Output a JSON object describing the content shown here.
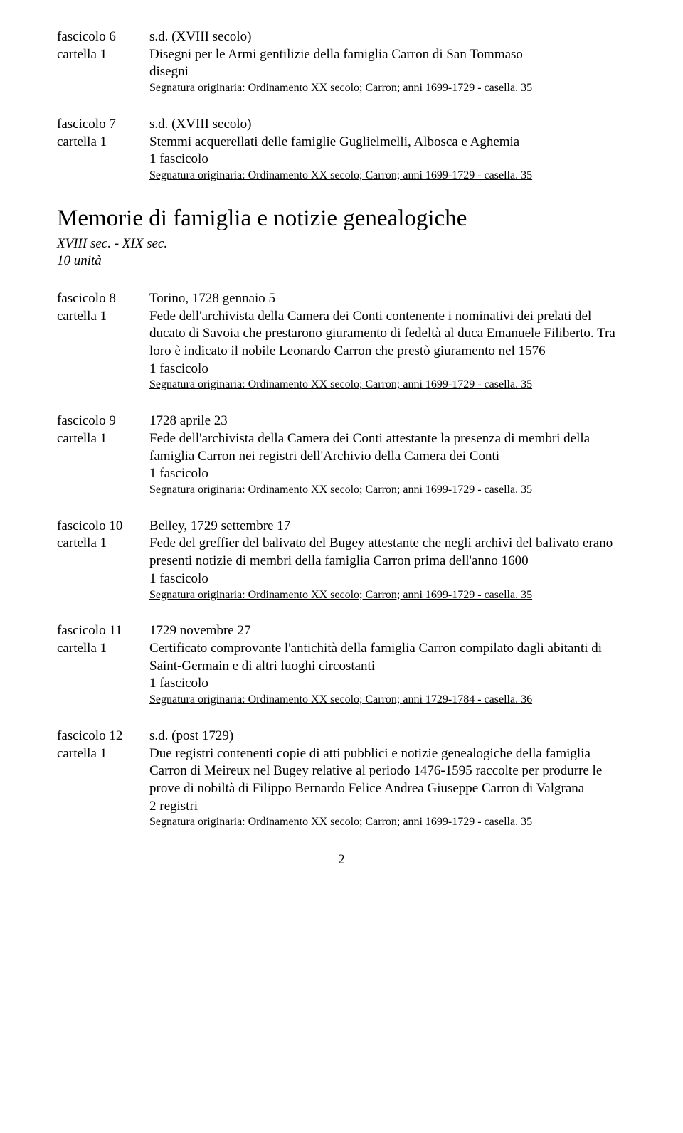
{
  "entries_top": [
    {
      "fascicolo": "fascicolo 6",
      "cartella": "cartella 1",
      "date": "s.d. (XVIII secolo)",
      "title": "Disegni per le Armi gentilizie della famiglia Carron di San Tommaso",
      "count": "disegni",
      "signature": "Segnatura originaria: Ordinamento XX secolo; Carron; anni 1699-1729 - casella. 35"
    },
    {
      "fascicolo": "fascicolo 7",
      "cartella": "cartella 1",
      "date": "s.d. (XVIII secolo)",
      "title": "Stemmi acquerellati delle famiglie Guglielmelli, Albosca e Aghemia",
      "count": "1 fascicolo",
      "signature": "Segnatura originaria: Ordinamento XX secolo; Carron; anni 1699-1729 - casella. 35"
    }
  ],
  "section": {
    "heading": "Memorie di famiglia e notizie genealogiche",
    "subheading_line1": "XVIII sec. - XIX sec.",
    "subheading_line2": "10 unità"
  },
  "entries_bottom": [
    {
      "fascicolo": "fascicolo 8",
      "cartella": "cartella 1",
      "date": "Torino, 1728 gennaio 5",
      "title": "Fede dell'archivista della Camera dei Conti contenente i nominativi dei prelati del ducato di Savoia che prestarono giuramento di fedeltà al duca Emanuele Filiberto. Tra loro è indicato il nobile Leonardo Carron che prestò giuramento nel 1576",
      "count": "1 fascicolo",
      "signature": "Segnatura originaria: Ordinamento XX secolo; Carron; anni 1699-1729 - casella. 35"
    },
    {
      "fascicolo": "fascicolo 9",
      "cartella": "cartella 1",
      "date": "1728 aprile 23",
      "title": "Fede dell'archivista della Camera dei Conti attestante la presenza di membri della famiglia Carron nei registri dell'Archivio della Camera dei Conti",
      "count": "1 fascicolo",
      "signature": "Segnatura originaria: Ordinamento XX secolo; Carron; anni 1699-1729 - casella. 35"
    },
    {
      "fascicolo": "fascicolo 10",
      "cartella": "cartella 1",
      "date": "Belley, 1729 settembre 17",
      "title": "Fede del greffier del balivato del Bugey attestante che negli archivi del balivato erano presenti notizie di membri della famiglia Carron prima dell'anno 1600",
      "count": "1 fascicolo",
      "signature": "Segnatura originaria: Ordinamento XX secolo; Carron; anni 1699-1729 - casella. 35"
    },
    {
      "fascicolo": "fascicolo 11",
      "cartella": "cartella 1",
      "date": "1729 novembre 27",
      "title": "Certificato comprovante l'antichità della famiglia Carron compilato dagli abitanti di Saint-Germain e di altri luoghi circostanti",
      "count": "1 fascicolo",
      "signature": "Segnatura originaria: Ordinamento XX secolo; Carron; anni 1729-1784 - casella. 36"
    },
    {
      "fascicolo": "fascicolo 12",
      "cartella": "cartella 1",
      "date": "s.d. (post 1729)",
      "title": "Due registri contenenti copie di atti pubblici e notizie genealogiche della famiglia Carron di Meireux nel Bugey relative al periodo 1476-1595 raccolte per produrre le prove di nobiltà di Filippo Bernardo Felice Andrea Giuseppe Carron di Valgrana",
      "count": "2 registri",
      "signature": "Segnatura originaria: Ordinamento XX secolo; Carron; anni 1699-1729 - casella. 35"
    }
  ],
  "page_number": "2"
}
